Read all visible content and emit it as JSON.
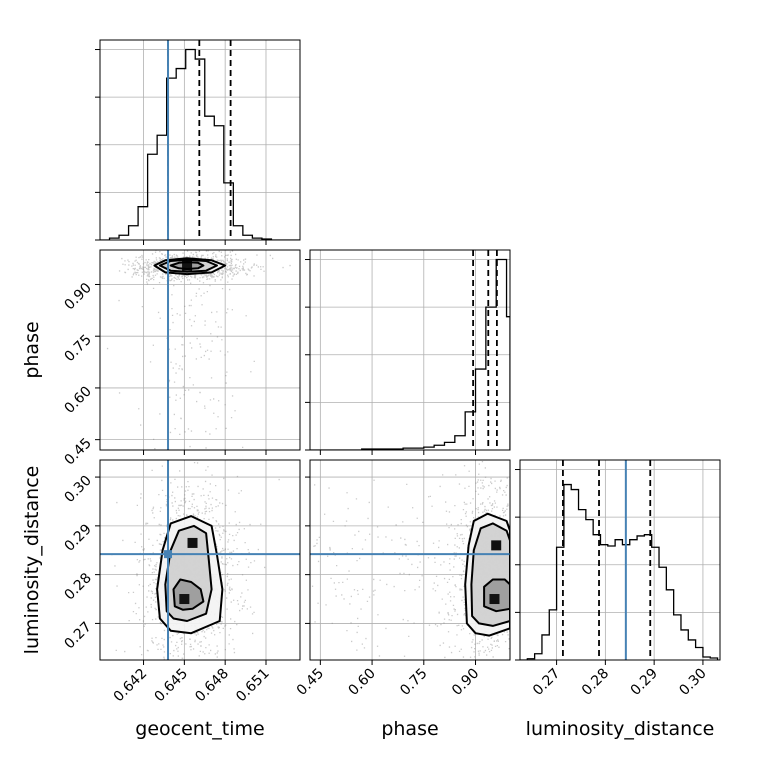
{
  "chart_data": {
    "type": "corner",
    "parameters": [
      "geocent_time",
      "phase",
      "luminosity_distance"
    ],
    "truths": {
      "geocent_time": 0.6438,
      "luminosity_distance": 0.2842
    },
    "colors": {
      "truth": "#4682b4",
      "line": "#000000",
      "grid": "#b0b0b0",
      "scatter": "#8a8a8a"
    },
    "grid": true,
    "axes": {
      "geocent_time": {
        "range": [
          0.6388,
          0.6535
        ],
        "ticks": [
          0.642,
          0.645,
          0.648,
          0.651
        ],
        "tick_labels": [
          "0.642",
          "0.645",
          "0.648",
          "0.651"
        ]
      },
      "phase": {
        "range": [
          0.42,
          1.0
        ],
        "ticks": [
          0.45,
          0.6,
          0.75,
          0.9
        ],
        "tick_labels": [
          "0.45",
          "0.60",
          "0.75",
          "0.90"
        ]
      },
      "luminosity_distance": {
        "range": [
          0.2625,
          0.3035
        ],
        "ticks": [
          0.27,
          0.28,
          0.29,
          0.3
        ],
        "tick_labels": [
          "0.27",
          "0.28",
          "0.29",
          "0.30"
        ]
      }
    },
    "histograms": [
      {
        "parameter": "geocent_time",
        "bin_edges": [
          0.6388,
          0.6395,
          0.6402,
          0.6409,
          0.6416,
          0.6423,
          0.643,
          0.6437,
          0.6444,
          0.6451,
          0.6458,
          0.6465,
          0.6472,
          0.6479,
          0.6486,
          0.6493,
          0.65,
          0.6507,
          0.6514,
          0.6521,
          0.6528,
          0.6535
        ],
        "counts": [
          0,
          2,
          5,
          15,
          35,
          90,
          110,
          170,
          180,
          200,
          190,
          130,
          120,
          60,
          15,
          5,
          2,
          1,
          0,
          0,
          0
        ],
        "ymax": 200,
        "quantiles": [
          0.6438,
          0.6461,
          0.6484
        ]
      },
      {
        "parameter": "phase",
        "bin_edges": [
          0.42,
          0.45,
          0.48,
          0.51,
          0.54,
          0.57,
          0.6,
          0.63,
          0.66,
          0.69,
          0.72,
          0.75,
          0.78,
          0.81,
          0.84,
          0.87,
          0.9,
          0.93,
          0.96,
          0.99,
          1.0
        ],
        "counts": [
          0,
          0,
          0,
          0,
          0,
          1,
          1,
          1,
          1,
          2,
          2,
          3,
          5,
          8,
          15,
          40,
          85,
          150,
          200,
          140
        ],
        "ymax": 200,
        "quantiles": [
          0.893,
          0.937,
          0.962
        ]
      },
      {
        "parameter": "luminosity_distance",
        "bin_edges": [
          0.2625,
          0.264,
          0.2655,
          0.267,
          0.2685,
          0.27,
          0.2715,
          0.273,
          0.2745,
          0.276,
          0.2775,
          0.279,
          0.2805,
          0.282,
          0.2835,
          0.285,
          0.2865,
          0.288,
          0.2895,
          0.291,
          0.2925,
          0.294,
          0.2955,
          0.297,
          0.2985,
          0.3,
          0.3015,
          0.303
        ],
        "counts": [
          0,
          5,
          25,
          100,
          200,
          450,
          700,
          680,
          600,
          560,
          500,
          460,
          455,
          480,
          460,
          480,
          495,
          500,
          450,
          370,
          280,
          180,
          120,
          80,
          50,
          12,
          8,
          2
        ],
        "ymax": 760,
        "quantiles": [
          0.2713,
          0.2787,
          0.2892
        ]
      }
    ],
    "density_2d": [
      {
        "x": "geocent_time",
        "y": "phase",
        "peaks": [
          {
            "x": 0.6452,
            "y": 0.955
          }
        ],
        "contours": [
          [
            [
              0.6428,
              0.955
            ],
            [
              0.6436,
              0.97
            ],
            [
              0.6452,
              0.976
            ],
            [
              0.647,
              0.97
            ],
            [
              0.648,
              0.955
            ],
            [
              0.647,
              0.935
            ],
            [
              0.6452,
              0.93
            ],
            [
              0.6436,
              0.935
            ]
          ],
          [
            [
              0.6432,
              0.955
            ],
            [
              0.644,
              0.968
            ],
            [
              0.6452,
              0.972
            ],
            [
              0.6466,
              0.968
            ],
            [
              0.6474,
              0.955
            ],
            [
              0.6466,
              0.94
            ],
            [
              0.6452,
              0.937
            ],
            [
              0.644,
              0.94
            ]
          ],
          [
            [
              0.644,
              0.955
            ],
            [
              0.6446,
              0.963
            ],
            [
              0.6452,
              0.965
            ],
            [
              0.646,
              0.963
            ],
            [
              0.6464,
              0.955
            ],
            [
              0.646,
              0.947
            ],
            [
              0.6452,
              0.945
            ],
            [
              0.6446,
              0.947
            ]
          ]
        ]
      },
      {
        "x": "geocent_time",
        "y": "luminosity_distance",
        "peaks": [
          {
            "x": 0.645,
            "y": 0.275
          },
          {
            "x": 0.6456,
            "y": 0.2865
          }
        ],
        "contours": [
          [
            [
              0.6432,
              0.271
            ],
            [
              0.643,
              0.277
            ],
            [
              0.6434,
              0.285
            ],
            [
              0.644,
              0.2905
            ],
            [
              0.6455,
              0.292
            ],
            [
              0.647,
              0.29
            ],
            [
              0.6474,
              0.284
            ],
            [
              0.6478,
              0.277
            ],
            [
              0.6476,
              0.2705
            ],
            [
              0.6455,
              0.268
            ],
            [
              0.644,
              0.2685
            ]
          ],
          [
            [
              0.6437,
              0.2725
            ],
            [
              0.6436,
              0.278
            ],
            [
              0.644,
              0.285
            ],
            [
              0.6446,
              0.289
            ],
            [
              0.6457,
              0.29
            ],
            [
              0.6466,
              0.2885
            ],
            [
              0.6468,
              0.283
            ],
            [
              0.647,
              0.277
            ],
            [
              0.6466,
              0.272
            ],
            [
              0.6452,
              0.2705
            ],
            [
              0.6442,
              0.271
            ]
          ],
          [
            [
              0.6443,
              0.2735
            ],
            [
              0.6442,
              0.277
            ],
            [
              0.6447,
              0.279
            ],
            [
              0.6455,
              0.2785
            ],
            [
              0.6462,
              0.277
            ],
            [
              0.6464,
              0.2745
            ],
            [
              0.6456,
              0.273
            ],
            [
              0.6449,
              0.2728
            ]
          ]
        ]
      },
      {
        "x": "phase",
        "y": "luminosity_distance",
        "peaks": [
          {
            "x": 0.955,
            "y": 0.275
          },
          {
            "x": 0.96,
            "y": 0.286
          }
        ],
        "contours": [
          [
            [
              0.875,
              0.27
            ],
            [
              0.87,
              0.278
            ],
            [
              0.88,
              0.286
            ],
            [
              0.895,
              0.291
            ],
            [
              0.935,
              0.2925
            ],
            [
              0.99,
              0.291
            ],
            [
              1.0,
              0.289
            ],
            [
              1.0,
              0.269
            ],
            [
              0.94,
              0.2675
            ],
            [
              0.9,
              0.268
            ]
          ],
          [
            [
              0.89,
              0.2715
            ],
            [
              0.888,
              0.278
            ],
            [
              0.895,
              0.285
            ],
            [
              0.915,
              0.2895
            ],
            [
              0.95,
              0.2905
            ],
            [
              0.99,
              0.289
            ],
            [
              1.0,
              0.287
            ],
            [
              1.0,
              0.2705
            ],
            [
              0.95,
              0.2695
            ],
            [
              0.91,
              0.27
            ]
          ],
          [
            [
              0.925,
              0.2735
            ],
            [
              0.925,
              0.2775
            ],
            [
              0.95,
              0.279
            ],
            [
              0.985,
              0.279
            ],
            [
              1.0,
              0.278
            ],
            [
              1.0,
              0.273
            ],
            [
              0.96,
              0.2725
            ]
          ]
        ]
      }
    ],
    "xlabels": [
      "geocent_time",
      "phase",
      "luminosity_distance"
    ],
    "ylabels": [
      "phase",
      "luminosity_distance"
    ]
  }
}
